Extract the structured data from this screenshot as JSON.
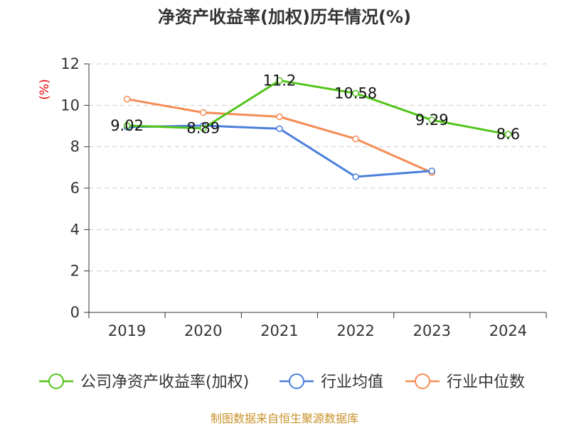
{
  "chart_data": {
    "type": "line",
    "title": "净资产收益率(加权)历年情况(%)",
    "ylabel": "(%)",
    "xlabel": "",
    "categories": [
      "2019",
      "2020",
      "2021",
      "2022",
      "2023",
      "2024"
    ],
    "ylim": [
      0,
      12
    ],
    "yticks": [
      0,
      2,
      4,
      6,
      8,
      10,
      12
    ],
    "grid": true,
    "legend_position": "bottom",
    "series": [
      {
        "name": "公司净资产收益率(加权)",
        "color": "#52c41a",
        "values": [
          9.02,
          8.89,
          11.2,
          10.58,
          9.29,
          8.6
        ],
        "labels": [
          "9.02",
          "8.89",
          "11.2",
          "10.58",
          "9.29",
          "8.6"
        ]
      },
      {
        "name": "行业均值",
        "color": "#4a7fdb",
        "values": [
          8.95,
          9.02,
          8.87,
          6.55,
          6.83,
          null
        ]
      },
      {
        "name": "行业中位数",
        "color": "#f58c55",
        "values": [
          10.3,
          9.65,
          9.45,
          8.38,
          6.75,
          null
        ]
      }
    ],
    "source": "制图数据来自恒生聚源数据库"
  }
}
